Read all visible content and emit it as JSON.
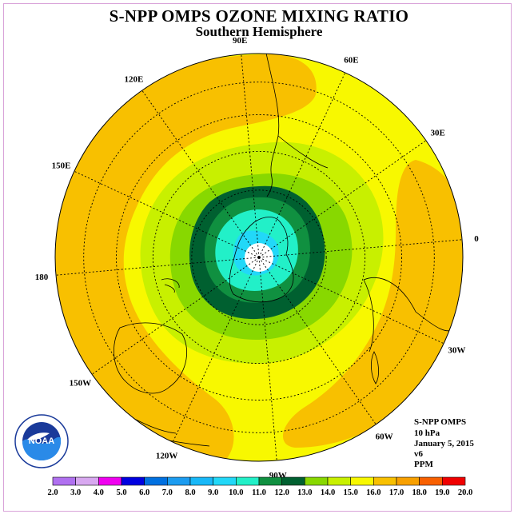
{
  "title": "S-NPP OMPS OZONE MIXING RATIO",
  "subtitle": "Southern Hemisphere",
  "longitude_labels": [
    {
      "text": "90W",
      "deg": -90
    },
    {
      "text": "60W",
      "deg": -60
    },
    {
      "text": "30W",
      "deg": -30
    },
    {
      "text": "0",
      "deg": 0
    },
    {
      "text": "30E",
      "deg": 30
    },
    {
      "text": "60E",
      "deg": 60
    },
    {
      "text": "90E",
      "deg": 90
    },
    {
      "text": "120E",
      "deg": 120
    },
    {
      "text": "150E",
      "deg": 150
    },
    {
      "text": "180",
      "deg": 180
    },
    {
      "text": "150W",
      "deg": -150
    },
    {
      "text": "120W",
      "deg": -120
    }
  ],
  "info": {
    "instrument": "S-NPP OMPS",
    "pressure": "10 hPa",
    "date": "January 5, 2015",
    "version": "v6",
    "units": "PPM"
  },
  "logo": {
    "text": "NOAA",
    "ring_text": "NATIONAL OCEANIC AND ATMOSPHERIC ADMINISTRATION U.S. DEPARTMENT OF COMMERCE"
  },
  "colorbar": {
    "labels": [
      "2.0",
      "3.0",
      "4.0",
      "5.0",
      "6.0",
      "7.0",
      "8.0",
      "9.0",
      "10.0",
      "11.0",
      "12.0",
      "13.0",
      "14.0",
      "15.0",
      "16.0",
      "17.0",
      "18.0",
      "19.0",
      "20.0"
    ],
    "colors": [
      "#b070f0",
      "#d8a8f0",
      "#f000f0",
      "#0000e0",
      "#0070e0",
      "#1c9cf0",
      "#18b8f8",
      "#22d8f8",
      "#22f0c8",
      "#109040",
      "#006030",
      "#88d800",
      "#c8f000",
      "#f8f800",
      "#f8c000",
      "#f8a000",
      "#f86000",
      "#f00000",
      "#805030"
    ]
  },
  "chart_data": {
    "type": "heatmap",
    "projection": "south polar stereographic",
    "variable": "Ozone mixing ratio",
    "units": "PPM",
    "level": "10 hPa",
    "contour_levels": [
      2,
      3,
      4,
      5,
      6,
      7,
      8,
      9,
      10,
      11,
      12,
      13,
      14,
      15,
      16,
      17,
      18,
      19,
      20
    ],
    "approx_fields": [
      {
        "region": "south pole",
        "value_range": [
          2,
          9
        ]
      },
      {
        "region": "antarctic interior",
        "value_range": [
          9,
          10
        ]
      },
      {
        "region": "antarctic coast ring",
        "value_range": [
          10,
          12
        ]
      },
      {
        "region": "southern ocean ring",
        "value_range": [
          12,
          14
        ]
      },
      {
        "region": "mid latitudes",
        "value_range": [
          14,
          15
        ]
      },
      {
        "region": "subtropical bands (Pacific, Atlantic, Indian)",
        "value_range": [
          15,
          16
        ]
      }
    ]
  }
}
